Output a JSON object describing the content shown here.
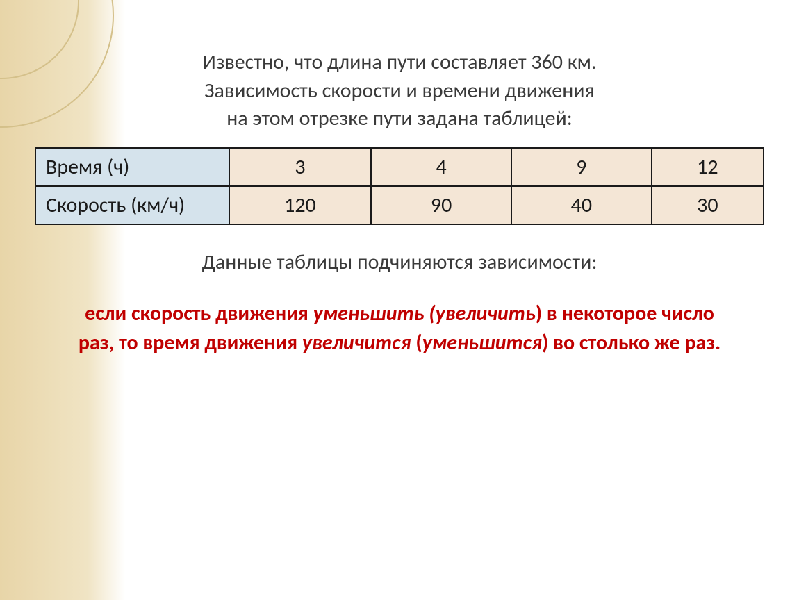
{
  "background": {
    "gradient_start": "#e8d5a8",
    "gradient_mid": "#f0e4c4",
    "circle_border": "#d4c08a"
  },
  "intro": {
    "line1": "Известно, что длина пути составляет 360 км.",
    "line2": "Зависимость скорости и времени движения",
    "line3": "на этом отрезке пути задана таблицей:"
  },
  "table": {
    "header_bg": "#d5e3ec",
    "cell_bg": "#f4e6d6",
    "border_color": "#1a1a1a",
    "rows": [
      {
        "label": "Время (ч)",
        "values": [
          "3",
          "4",
          "9",
          "12"
        ]
      },
      {
        "label": "Скорость (км/ч)",
        "values": [
          "120",
          "90",
          "40",
          "30"
        ]
      }
    ]
  },
  "mid_text": "Данные таблицы подчиняются зависимости:",
  "emphasis": {
    "color": "#c00000",
    "prefix1": "если скорость движения ",
    "italic1": "уменьшить (увеличить",
    "after1": ") в некоторое число раз, то время движения ",
    "italic2": "увеличится",
    "between": " (",
    "italic3": "уменьшится",
    "suffix": ") во столько же раз."
  },
  "typography": {
    "base_fontsize": 30,
    "text_color": "#3a3a3a"
  }
}
